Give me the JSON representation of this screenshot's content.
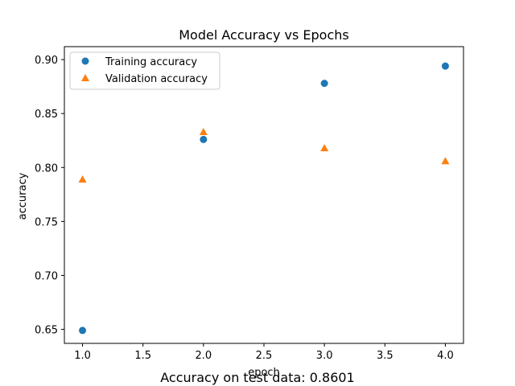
{
  "chart_data": {
    "type": "scatter",
    "title": "Model Accuracy vs Epochs",
    "xlabel": "epoch",
    "ylabel": "accuracy",
    "xlim": [
      0.85,
      4.15
    ],
    "ylim": [
      0.637,
      0.912
    ],
    "xticks": [
      1.0,
      1.5,
      2.0,
      2.5,
      3.0,
      3.5,
      4.0
    ],
    "xtick_labels": [
      "1.0",
      "1.5",
      "2.0",
      "2.5",
      "3.0",
      "3.5",
      "4.0"
    ],
    "yticks": [
      0.65,
      0.7,
      0.75,
      0.8,
      0.85,
      0.9
    ],
    "ytick_labels": [
      "0.65",
      "0.70",
      "0.75",
      "0.80",
      "0.85",
      "0.90"
    ],
    "legend_position": "top-left",
    "grid": false,
    "series": [
      {
        "name": "Training accuracy",
        "marker": "circle",
        "color": "#1f77b4",
        "x": [
          1,
          2,
          3,
          4
        ],
        "y": [
          0.649,
          0.826,
          0.878,
          0.894
        ]
      },
      {
        "name": "Validation accuracy",
        "marker": "triangle",
        "color": "#ff7f0e",
        "x": [
          1,
          2,
          3,
          4
        ],
        "y": [
          0.789,
          0.833,
          0.818,
          0.806
        ]
      }
    ]
  },
  "caption": "Accuracy on test data: 0.8601"
}
